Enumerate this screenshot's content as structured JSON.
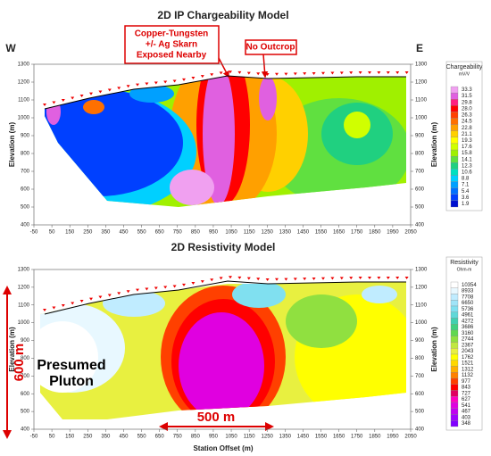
{
  "chart_data": [
    {
      "type": "contour",
      "title": "2D IP Chargeability Model",
      "left_label": "W",
      "right_label": "E",
      "ylabel": "Elevation (m)",
      "xlim": [
        -50,
        2050
      ],
      "xticks": [
        -50,
        50,
        150,
        250,
        350,
        450,
        550,
        650,
        750,
        850,
        950,
        1050,
        1150,
        1250,
        1350,
        1450,
        1550,
        1650,
        1750,
        1850,
        1950,
        2050
      ],
      "ylim": [
        400,
        1300
      ],
      "yticks": [
        400,
        500,
        600,
        700,
        800,
        900,
        1000,
        1100,
        1200,
        1300
      ],
      "colorbar": {
        "title": "Chargeability",
        "unit": "mV/V",
        "levels": [
          33.3,
          31.5,
          29.8,
          {
            "value": 28,
            "label": "28.0"
          },
          26.3,
          24.5,
          22.8,
          21.1,
          19.3,
          17.6,
          15.8,
          14.1,
          12.3,
          10.6,
          8.8,
          7.1,
          5.4,
          3.6,
          1.9
        ],
        "colors": [
          "#f0a0f0",
          "#e060e0",
          "#ff2080",
          "#ff0000",
          "#ff4000",
          "#ff7000",
          "#ffa000",
          "#ffd000",
          "#ffff00",
          "#d0ff00",
          "#a0f000",
          "#60e040",
          "#20d080",
          "#00e0c0",
          "#00d0ff",
          "#00a0ff",
          "#0070ff",
          "#0040ff",
          "#0010d0"
        ]
      },
      "callouts": [
        [
          "Copper-Tungsten",
          "+/- Ag Skarn",
          "Exposed Nearby"
        ],
        [
          "No Outcrop"
        ]
      ]
    },
    {
      "type": "contour",
      "title": "2D Resistivity Model",
      "xlabel": "Station Offset (m)",
      "ylabel": "Elevation (m)",
      "xlim": [
        -50,
        2050
      ],
      "xticks": [
        -50,
        50,
        150,
        250,
        350,
        450,
        550,
        650,
        750,
        850,
        950,
        1050,
        1150,
        1250,
        1350,
        1450,
        1550,
        1650,
        1750,
        1850,
        1950,
        2050
      ],
      "ylim": [
        400,
        1300
      ],
      "yticks": [
        400,
        500,
        600,
        700,
        800,
        900,
        1000,
        1100,
        1200,
        1300
      ],
      "colorbar": {
        "title": "Resistivity",
        "unit": "Ohm-m",
        "levels": [
          10354,
          8933,
          7708,
          6650,
          5736,
          4961,
          4272,
          3686,
          3160,
          2744,
          2367,
          2043,
          1762,
          1521,
          1312,
          1132,
          977,
          843,
          727,
          627,
          541,
          467,
          403,
          348
        ],
        "colors": [
          "#ffffff",
          "#e8f8ff",
          "#c0ecff",
          "#a0e4f8",
          "#80e0f0",
          "#60d8d8",
          "#40d0b0",
          "#40d080",
          "#60d850",
          "#90e040",
          "#c0e840",
          "#e8f040",
          "#ffff00",
          "#ffd800",
          "#ffb000",
          "#ff8000",
          "#ff4000",
          "#ff0000",
          "#e00060",
          "#ff00c0",
          "#e000e0",
          "#c000f0",
          "#a000ff",
          "#8000ff"
        ]
      },
      "callouts": [
        [
          "600 m"
        ],
        [
          "500 m"
        ],
        [
          "Presumed",
          "Pluton"
        ]
      ]
    }
  ]
}
